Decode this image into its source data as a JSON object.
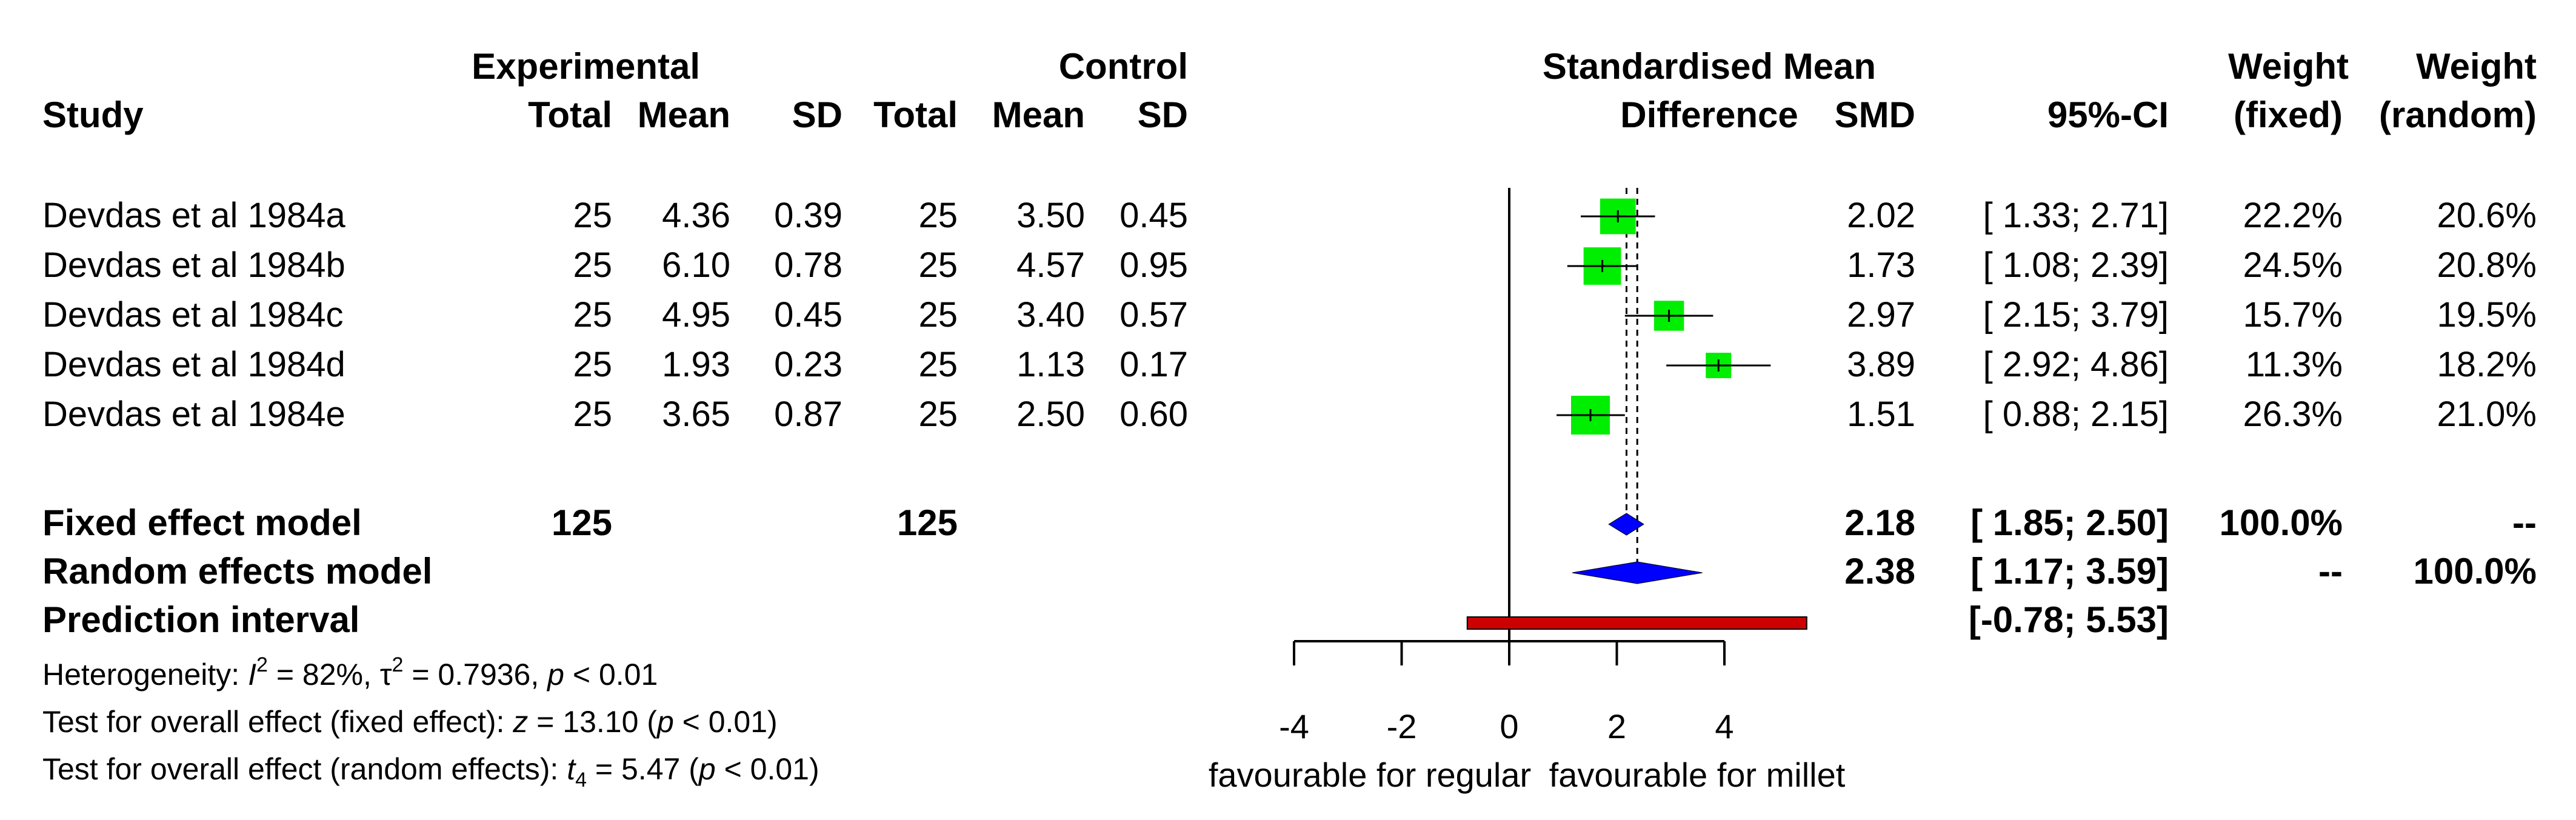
{
  "header": {
    "study": "Study",
    "experimental": "Experimental",
    "control": "Control",
    "total": "Total",
    "mean": "Mean",
    "sd": "SD",
    "smd_title_line1": "Standardised Mean",
    "smd_title_line2": "Difference",
    "smd": "SMD",
    "ci": "95%-CI",
    "weight": "Weight",
    "fixed": "(fixed)",
    "random": "(random)"
  },
  "studies": [
    {
      "name": "Devdas et al 1984a",
      "e_total": "25",
      "e_mean": "4.36",
      "e_sd": "0.39",
      "c_total": "25",
      "c_mean": "3.50",
      "c_sd": "0.45",
      "smd": "2.02",
      "ci": "[ 1.33; 2.71]",
      "w_fixed": "22.2%",
      "w_random": "20.6%"
    },
    {
      "name": "Devdas et al 1984b",
      "e_total": "25",
      "e_mean": "6.10",
      "e_sd": "0.78",
      "c_total": "25",
      "c_mean": "4.57",
      "c_sd": "0.95",
      "smd": "1.73",
      "ci": "[ 1.08; 2.39]",
      "w_fixed": "24.5%",
      "w_random": "20.8%"
    },
    {
      "name": "Devdas et al 1984c",
      "e_total": "25",
      "e_mean": "4.95",
      "e_sd": "0.45",
      "c_total": "25",
      "c_mean": "3.40",
      "c_sd": "0.57",
      "smd": "2.97",
      "ci": "[ 2.15; 3.79]",
      "w_fixed": "15.7%",
      "w_random": "19.5%"
    },
    {
      "name": "Devdas et al 1984d",
      "e_total": "25",
      "e_mean": "1.93",
      "e_sd": "0.23",
      "c_total": "25",
      "c_mean": "1.13",
      "c_sd": "0.17",
      "smd": "3.89",
      "ci": "[ 2.92; 4.86]",
      "w_fixed": "11.3%",
      "w_random": "18.2%"
    },
    {
      "name": "Devdas et al 1984e",
      "e_total": "25",
      "e_mean": "3.65",
      "e_sd": "0.87",
      "c_total": "25",
      "c_mean": "2.50",
      "c_sd": "0.60",
      "smd": "1.51",
      "ci": "[ 0.88; 2.15]",
      "w_fixed": "26.3%",
      "w_random": "21.0%"
    }
  ],
  "summary": {
    "fixed": {
      "label": "Fixed effect model",
      "e_total": "125",
      "c_total": "125",
      "smd": "2.18",
      "ci": "[ 1.85; 2.50]",
      "w_fixed": "100.0%",
      "w_random": "--"
    },
    "random": {
      "label": "Random effects model",
      "smd": "2.38",
      "ci": "[ 1.17; 3.59]",
      "w_fixed": "--",
      "w_random": "100.0%"
    },
    "prediction": {
      "label": "Prediction interval",
      "ci": "[-0.78; 5.53]"
    }
  },
  "footer": {
    "het_prefix": "Heterogeneity: ",
    "het_I": "I",
    "het_sup2": "2",
    "het_I_val": " = 82%, ",
    "het_tau": "τ",
    "het_tau_val": " = 0.7936, ",
    "het_p": "p",
    "het_p_val": " < 0.01",
    "fixed_prefix": "Test for overall effect (fixed effect): ",
    "fixed_z": "z",
    "fixed_z_val": " = 13.10 (",
    "fixed_p": "p",
    "fixed_p_val": " < 0.01)",
    "random_prefix": "Test for overall effect (random effects): ",
    "random_t": "t",
    "random_t_sub": "4",
    "random_t_val": " = 5.47 (",
    "random_p": "p",
    "random_p_val": " < 0.01)"
  },
  "chart_data": {
    "type": "forest",
    "title": "Standardised Mean Difference",
    "xlabel_left": "favourable for regular",
    "xlabel_right": "favourable for millet",
    "xlim": [
      -4,
      4
    ],
    "xticks": [
      -4,
      -2,
      0,
      2,
      4
    ],
    "xtick_labels": [
      "-4",
      "-2",
      "0",
      "2",
      "4"
    ],
    "null_value": 0,
    "studies": [
      {
        "smd": 2.02,
        "lower": 1.33,
        "upper": 2.71,
        "weight_fixed": 22.2
      },
      {
        "smd": 1.73,
        "lower": 1.08,
        "upper": 2.39,
        "weight_fixed": 24.5
      },
      {
        "smd": 2.97,
        "lower": 2.15,
        "upper": 3.79,
        "weight_fixed": 15.7
      },
      {
        "smd": 3.89,
        "lower": 2.92,
        "upper": 4.86,
        "weight_fixed": 11.3
      },
      {
        "smd": 1.51,
        "lower": 0.88,
        "upper": 2.15,
        "weight_fixed": 26.3
      }
    ],
    "fixed": {
      "smd": 2.18,
      "lower": 1.85,
      "upper": 2.5
    },
    "random": {
      "smd": 2.38,
      "lower": 1.17,
      "upper": 3.59
    },
    "prediction": {
      "lower": -0.78,
      "upper": 5.53
    },
    "colors": {
      "square": "#00ee00",
      "diamond": "#0000ff",
      "prediction": "#cc0000"
    }
  }
}
